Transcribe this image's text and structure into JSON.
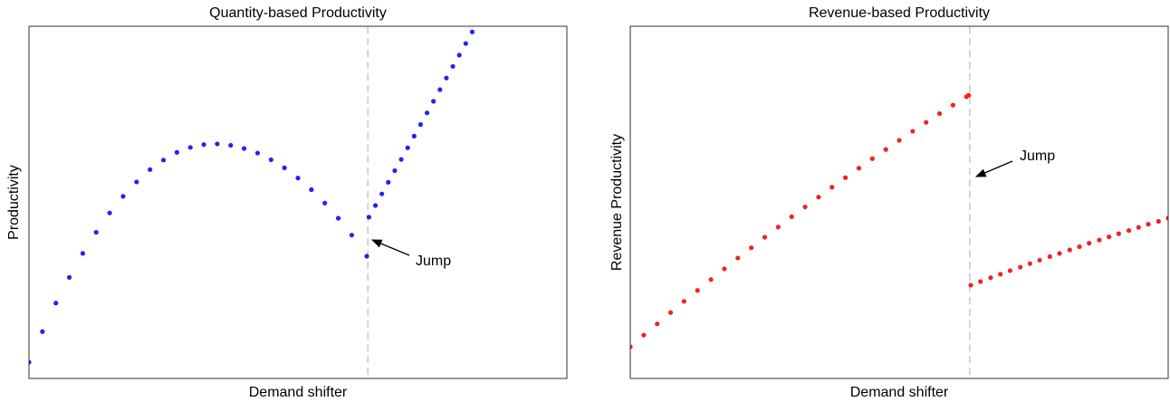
{
  "chart_data": [
    {
      "type": "scatter",
      "title": "Quantity-based Productivity",
      "xlabel": "Demand shifter",
      "ylabel": "Productivity",
      "xlim": [
        0,
        1
      ],
      "ylim": [
        0,
        1
      ],
      "vline": 0.63,
      "annotation": "Jump",
      "series": [
        {
          "color": "#2323f0",
          "x": [
            0,
            0.025,
            0.05,
            0.075,
            0.1,
            0.125,
            0.15,
            0.175,
            0.2,
            0.225,
            0.25,
            0.275,
            0.3,
            0.325,
            0.35,
            0.375,
            0.4,
            0.425,
            0.45,
            0.475,
            0.5,
            0.525,
            0.55,
            0.575,
            0.6,
            0.628
          ],
          "values": [
            0.046,
            0.133,
            0.214,
            0.287,
            0.355,
            0.415,
            0.47,
            0.517,
            0.558,
            0.593,
            0.62,
            0.642,
            0.656,
            0.664,
            0.666,
            0.662,
            0.653,
            0.64,
            0.621,
            0.598,
            0.569,
            0.536,
            0.498,
            0.455,
            0.407,
            0.347
          ]
        },
        {
          "color": "#2323f0",
          "x": [
            0.632,
            0.644,
            0.656,
            0.668,
            0.68,
            0.692,
            0.704,
            0.716,
            0.728,
            0.74,
            0.752,
            0.764,
            0.776,
            0.788,
            0.8,
            0.812,
            0.824
          ],
          "values": [
            0.458,
            0.491,
            0.524,
            0.557,
            0.59,
            0.622,
            0.655,
            0.688,
            0.721,
            0.754,
            0.787,
            0.82,
            0.853,
            0.886,
            0.918,
            0.951,
            0.984
          ]
        }
      ]
    },
    {
      "type": "scatter",
      "title": "Revenue-based Productivity",
      "xlabel": "Demand shifter",
      "ylabel": "Revenue Productivity",
      "xlim": [
        0,
        1
      ],
      "ylim": [
        0,
        1
      ],
      "vline": 0.631,
      "annotation": "Jump",
      "series": [
        {
          "color": "#ee2424",
          "x": [
            0,
            0.025,
            0.05,
            0.075,
            0.1,
            0.125,
            0.15,
            0.175,
            0.2,
            0.225,
            0.25,
            0.275,
            0.3,
            0.325,
            0.35,
            0.375,
            0.4,
            0.425,
            0.45,
            0.475,
            0.5,
            0.525,
            0.55,
            0.575,
            0.6,
            0.625,
            0.629
          ],
          "values": [
            0.09,
            0.123,
            0.155,
            0.187,
            0.219,
            0.25,
            0.281,
            0.311,
            0.342,
            0.371,
            0.401,
            0.43,
            0.459,
            0.487,
            0.515,
            0.543,
            0.57,
            0.597,
            0.624,
            0.65,
            0.676,
            0.702,
            0.727,
            0.752,
            0.776,
            0.8,
            0.804
          ]
        },
        {
          "color": "#ee2424",
          "x": [
            0.633,
            0.651,
            0.67,
            0.688,
            0.706,
            0.725,
            0.743,
            0.761,
            0.78,
            0.798,
            0.817,
            0.835,
            0.853,
            0.872,
            0.89,
            0.908,
            0.927,
            0.945,
            0.963,
            0.982,
            1.0
          ],
          "values": [
            0.265,
            0.275,
            0.286,
            0.296,
            0.306,
            0.316,
            0.326,
            0.336,
            0.346,
            0.355,
            0.365,
            0.374,
            0.384,
            0.393,
            0.402,
            0.411,
            0.42,
            0.429,
            0.438,
            0.446,
            0.455
          ]
        }
      ]
    }
  ]
}
